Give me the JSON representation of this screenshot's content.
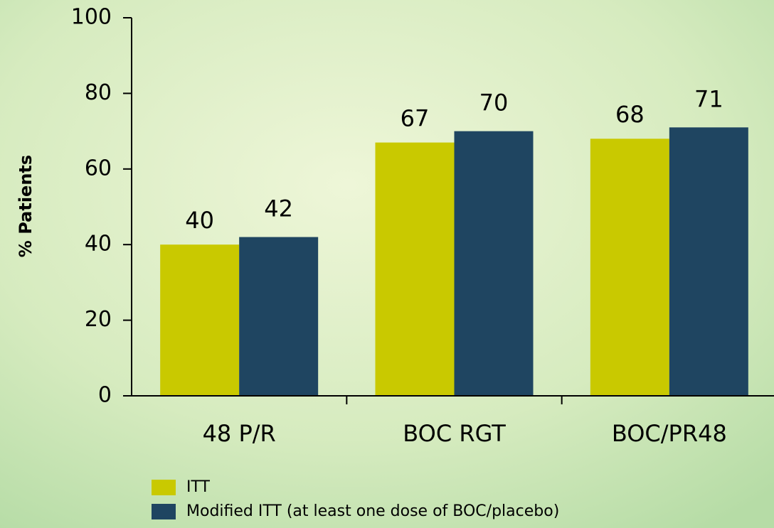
{
  "chart_data": {
    "type": "bar",
    "categories": [
      "48 P/R",
      "BOC RGT",
      "BOC/PR48"
    ],
    "series": [
      {
        "name": "ITT",
        "color": "#c9c900",
        "values": [
          40,
          67,
          68
        ]
      },
      {
        "name": "Modified ITT (at least one dose of BOC/placebo)",
        "color": "#1f4561",
        "values": [
          42,
          70,
          71
        ]
      }
    ],
    "y_label": "% Patients",
    "ylim": [
      0,
      100
    ],
    "yticks": [
      0,
      20,
      40,
      60,
      80,
      100
    ]
  }
}
